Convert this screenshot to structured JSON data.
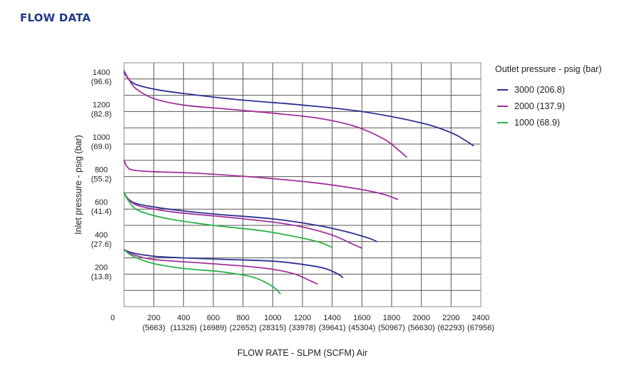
{
  "page": {
    "title": "FLOW DATA"
  },
  "chart_data": {
    "type": "line",
    "title": "FLOW DATA",
    "xlabel": "FLOW RATE - SLPM (SCFM) Air",
    "ylabel": "Inlet pressure - psig (bar)",
    "xlim": [
      0,
      2400
    ],
    "ylim": [
      0,
      1500
    ],
    "origin_label": "0",
    "x_ticks": [
      {
        "value": 200,
        "label": "200",
        "sub": "(5663)"
      },
      {
        "value": 400,
        "label": "400",
        "sub": "(11326)"
      },
      {
        "value": 600,
        "label": "600",
        "sub": "(16989)"
      },
      {
        "value": 800,
        "label": "800",
        "sub": "(22652)"
      },
      {
        "value": 1000,
        "label": "1000",
        "sub": "(28315)"
      },
      {
        "value": 1200,
        "label": "1200",
        "sub": "(33978)"
      },
      {
        "value": 1400,
        "label": "1400",
        "sub": "(39641)"
      },
      {
        "value": 1600,
        "label": "1600",
        "sub": "(45304)"
      },
      {
        "value": 1800,
        "label": "1800",
        "sub": "(50967)"
      },
      {
        "value": 2000,
        "label": "2000",
        "sub": "(56630)"
      },
      {
        "value": 2200,
        "label": "2200",
        "sub": "(62293)"
      },
      {
        "value": 2400,
        "label": "2400",
        "sub": "(67956)"
      }
    ],
    "y_ticks": [
      {
        "value": 200,
        "label": "200",
        "sub": "(13.8)"
      },
      {
        "value": 400,
        "label": "400",
        "sub": "(27.6)"
      },
      {
        "value": 600,
        "label": "600",
        "sub": "(41.4)"
      },
      {
        "value": 800,
        "label": "800",
        "sub": "(55.2)"
      },
      {
        "value": 1000,
        "label": "1000",
        "sub": "(69.0)"
      },
      {
        "value": 1200,
        "label": "1200",
        "sub": "(82.8)"
      },
      {
        "value": 1400,
        "label": "1400",
        "sub": "(96.6)"
      }
    ],
    "grid": {
      "x_step": 200,
      "y_step": 100,
      "on": true
    },
    "legend": {
      "title": "Outlet pressure - psig (bar)",
      "placement": "right",
      "entries": [
        {
          "label": "3000 (206.8)",
          "color": "#2e3192"
        },
        {
          "label": "2000 (137.9)",
          "color": "#a3309b"
        },
        {
          "label": "1000 (68.9)",
          "color": "#2bb34a"
        }
      ]
    },
    "series": [
      {
        "color": "#2e3192",
        "points": [
          [
            0,
            1440
          ],
          [
            40,
            1390
          ],
          [
            100,
            1360
          ],
          [
            250,
            1330
          ],
          [
            500,
            1300
          ],
          [
            800,
            1270
          ],
          [
            1200,
            1240
          ],
          [
            1600,
            1200
          ],
          [
            2000,
            1130
          ],
          [
            2200,
            1070
          ],
          [
            2300,
            1020
          ],
          [
            2350,
            990
          ]
        ]
      },
      {
        "color": "#a3309b",
        "points": [
          [
            0,
            1450
          ],
          [
            30,
            1400
          ],
          [
            80,
            1340
          ],
          [
            200,
            1280
          ],
          [
            400,
            1240
          ],
          [
            700,
            1215
          ],
          [
            1000,
            1190
          ],
          [
            1300,
            1160
          ],
          [
            1550,
            1110
          ],
          [
            1750,
            1030
          ],
          [
            1850,
            960
          ],
          [
            1900,
            920
          ]
        ]
      },
      {
        "color": "#a3309b",
        "points": [
          [
            0,
            900
          ],
          [
            20,
            860
          ],
          [
            60,
            840
          ],
          [
            200,
            830
          ],
          [
            500,
            820
          ],
          [
            900,
            795
          ],
          [
            1300,
            760
          ],
          [
            1600,
            720
          ],
          [
            1750,
            690
          ],
          [
            1840,
            660
          ]
        ]
      },
      {
        "color": "#2e3192",
        "points": [
          [
            0,
            700
          ],
          [
            30,
            660
          ],
          [
            100,
            630
          ],
          [
            300,
            600
          ],
          [
            600,
            570
          ],
          [
            1000,
            540
          ],
          [
            1300,
            500
          ],
          [
            1500,
            460
          ],
          [
            1650,
            420
          ],
          [
            1700,
            400
          ]
        ]
      },
      {
        "color": "#a3309b",
        "points": [
          [
            0,
            700
          ],
          [
            40,
            650
          ],
          [
            120,
            615
          ],
          [
            350,
            580
          ],
          [
            700,
            550
          ],
          [
            1000,
            520
          ],
          [
            1200,
            490
          ],
          [
            1400,
            440
          ],
          [
            1550,
            380
          ],
          [
            1600,
            360
          ]
        ]
      },
      {
        "color": "#2bb34a",
        "points": [
          [
            0,
            700
          ],
          [
            30,
            650
          ],
          [
            100,
            590
          ],
          [
            300,
            540
          ],
          [
            600,
            500
          ],
          [
            900,
            470
          ],
          [
            1100,
            440
          ],
          [
            1300,
            400
          ],
          [
            1400,
            365
          ]
        ]
      },
      {
        "color": "#2e3192",
        "points": [
          [
            0,
            350
          ],
          [
            60,
            330
          ],
          [
            200,
            310
          ],
          [
            400,
            300
          ],
          [
            700,
            290
          ],
          [
            1000,
            280
          ],
          [
            1200,
            260
          ],
          [
            1350,
            235
          ],
          [
            1440,
            200
          ],
          [
            1470,
            180
          ]
        ]
      },
      {
        "color": "#a3309b",
        "points": [
          [
            0,
            350
          ],
          [
            60,
            320
          ],
          [
            200,
            290
          ],
          [
            500,
            270
          ],
          [
            800,
            250
          ],
          [
            1000,
            230
          ],
          [
            1150,
            200
          ],
          [
            1250,
            160
          ],
          [
            1300,
            140
          ]
        ]
      },
      {
        "color": "#2bb34a",
        "points": [
          [
            0,
            350
          ],
          [
            60,
            310
          ],
          [
            200,
            265
          ],
          [
            400,
            235
          ],
          [
            650,
            215
          ],
          [
            850,
            185
          ],
          [
            950,
            150
          ],
          [
            1020,
            110
          ],
          [
            1050,
            80
          ]
        ]
      }
    ]
  }
}
